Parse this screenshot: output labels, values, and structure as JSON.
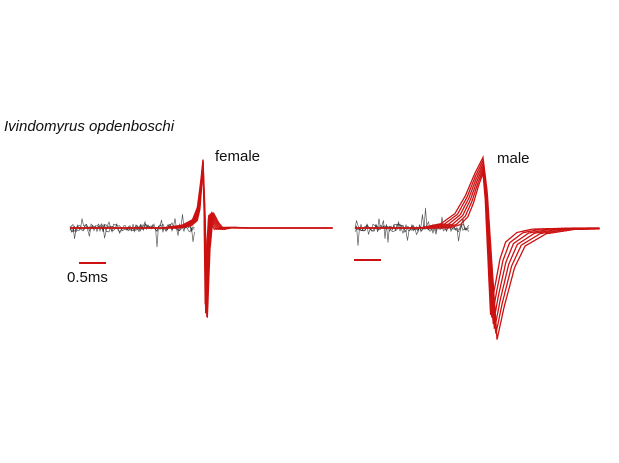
{
  "chart_data": [
    {
      "type": "line",
      "title": "Ivindomyrus opdenboschi",
      "panel_label": "female",
      "xlabel": "",
      "ylabel": "",
      "grid": false,
      "scale_bar": {
        "label": "0.5ms",
        "duration_ms": 0.5
      },
      "colors": {
        "trace": "#cc1111",
        "noise": "#222222"
      },
      "trace_count": 6,
      "x_ms": [
        -3.0,
        -0.6,
        -0.3,
        -0.15,
        -0.08,
        -0.03,
        0.0,
        0.03,
        0.06,
        0.1,
        0.15,
        0.22,
        0.3,
        0.45,
        0.7,
        1.0,
        2.7
      ],
      "mean_trace": [
        0.0,
        0.0,
        0.04,
        0.12,
        0.3,
        0.7,
        1.0,
        0.2,
        -1.35,
        -0.3,
        0.22,
        0.08,
        -0.02,
        0.01,
        0.0,
        0.0,
        0.0
      ]
    },
    {
      "type": "line",
      "panel_label": "male",
      "xlabel": "",
      "ylabel": "",
      "grid": false,
      "scale_bar": {
        "label": "",
        "duration_ms": 0.5
      },
      "colors": {
        "trace": "#cc1111",
        "noise": "#222222"
      },
      "trace_count": 6,
      "x_ms": [
        -2.5,
        -0.9,
        -0.6,
        -0.4,
        -0.25,
        -0.12,
        0.0,
        0.06,
        0.12,
        0.2,
        0.3,
        0.45,
        0.6,
        0.9,
        1.3,
        2.4
      ],
      "mean_trace": [
        0.0,
        0.0,
        0.06,
        0.2,
        0.45,
        0.75,
        0.98,
        0.5,
        -0.4,
        -1.55,
        -1.1,
        -0.55,
        -0.25,
        -0.08,
        -0.02,
        0.0
      ]
    }
  ]
}
